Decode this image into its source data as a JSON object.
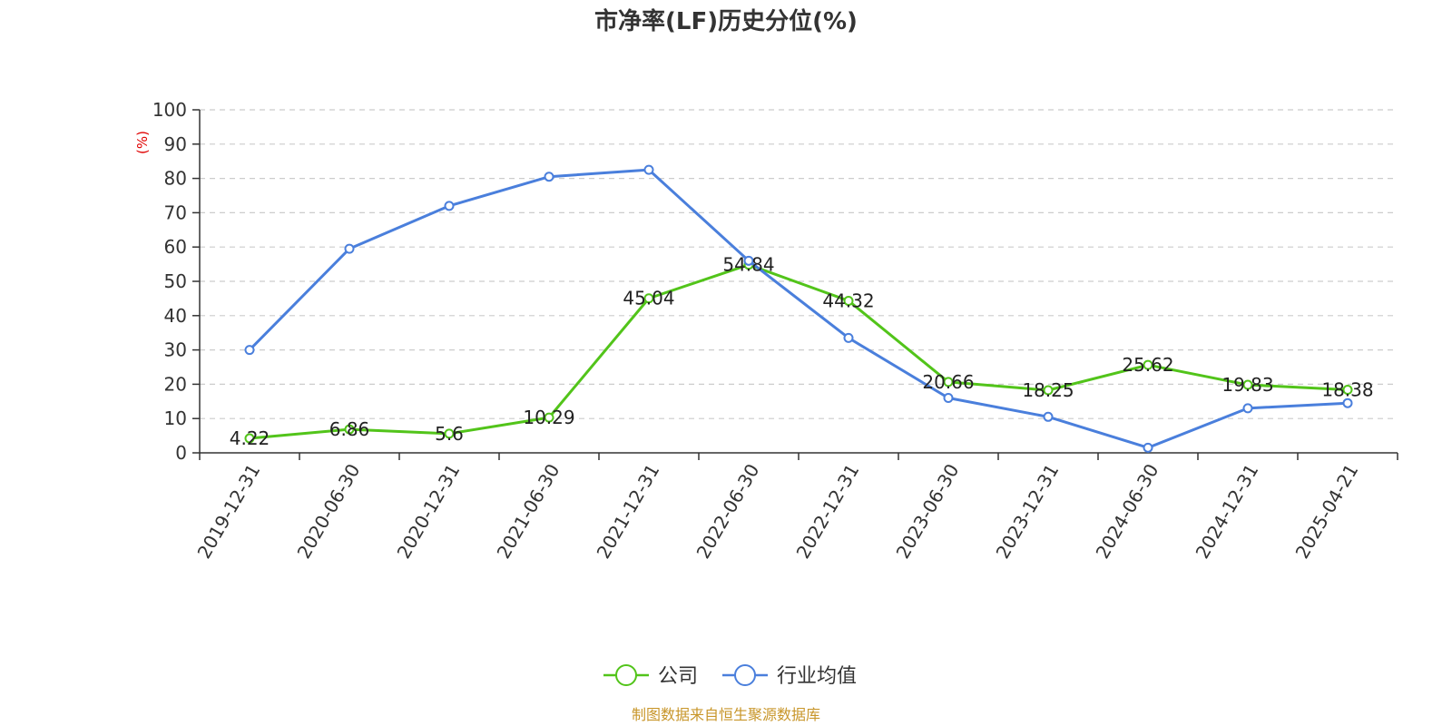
{
  "chart_data": {
    "type": "line",
    "title": "市净率(LF)历史分位(%)",
    "ylabel": "(%)",
    "xlabel": "",
    "ylim": [
      0,
      100
    ],
    "yticks": [
      0,
      10,
      20,
      30,
      40,
      50,
      60,
      70,
      80,
      90,
      100
    ],
    "grid": true,
    "legend_position": "bottom-center",
    "categories": [
      "2019-12-31",
      "2020-06-30",
      "2020-12-31",
      "2021-06-30",
      "2021-12-31",
      "2022-06-30",
      "2022-12-31",
      "2023-06-30",
      "2023-12-31",
      "2024-06-30",
      "2024-12-31",
      "2025-04-21"
    ],
    "series": [
      {
        "name": "公司",
        "color": "#52c41a",
        "show_labels": true,
        "values": [
          4.22,
          6.86,
          5.6,
          10.29,
          45.04,
          54.84,
          44.32,
          20.66,
          18.25,
          25.62,
          19.83,
          18.38
        ]
      },
      {
        "name": "行业均值",
        "color": "#4a7fdc",
        "show_labels": false,
        "values": [
          30,
          59.5,
          72,
          80.5,
          82.5,
          56,
          33.5,
          16,
          10.5,
          1.5,
          13,
          14.5
        ]
      }
    ],
    "source": "制图数据来自恒生聚源数据库"
  }
}
